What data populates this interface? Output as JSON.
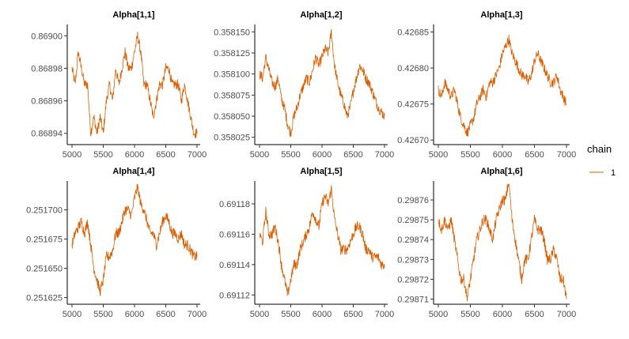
{
  "chart_data": [
    {
      "type": "line",
      "title": "Alpha[1,1]",
      "xlim": [
        5000,
        7000
      ],
      "ylim": [
        0.868935,
        0.869005
      ],
      "xticks": [
        5000,
        5500,
        6000,
        6500,
        7000
      ],
      "xtick_labels": [
        "5000",
        "5500",
        "6000",
        "6500",
        "7000"
      ],
      "yticks": [
        0.86894,
        0.86896,
        0.86898,
        0.869
      ],
      "ytick_labels": [
        "0.86894",
        "0.86896",
        "0.86898",
        "0.86900"
      ],
      "series": [
        {
          "x": [
            5000,
            5050,
            5100,
            5150,
            5200,
            5250,
            5300,
            5350,
            5400,
            5450,
            5500,
            5550,
            5600,
            5650,
            5700,
            5750,
            5800,
            5850,
            5900,
            5950,
            6000,
            6050,
            6100,
            6150,
            6200,
            6250,
            6300,
            6350,
            6400,
            6450,
            6500,
            6550,
            6600,
            6650,
            6700,
            6750,
            6800,
            6850,
            6900,
            6950,
            7000
          ],
          "values": [
            0.86898,
            0.86897,
            0.86899,
            0.86898,
            0.86897,
            0.86897,
            0.86894,
            0.86895,
            0.86894,
            0.86895,
            0.86894,
            0.86896,
            0.86897,
            0.86896,
            0.86898,
            0.86897,
            0.86898,
            0.86899,
            0.86898,
            0.86898,
            0.86899,
            0.869,
            0.86899,
            0.86897,
            0.86897,
            0.86896,
            0.86895,
            0.86896,
            0.86897,
            0.86897,
            0.86898,
            0.86898,
            0.86897,
            0.86897,
            0.86897,
            0.86896,
            0.86897,
            0.86896,
            0.86895,
            0.86894,
            0.86894
          ]
        }
      ]
    },
    {
      "type": "line",
      "title": "Alpha[1,2]",
      "xlim": [
        5000,
        7000
      ],
      "ylim": [
        0.35802,
        0.358155
      ],
      "xticks": [
        5000,
        5500,
        6000,
        6500,
        7000
      ],
      "xtick_labels": [
        "5000",
        "5500",
        "6000",
        "6500",
        "7000"
      ],
      "yticks": [
        0.358025,
        0.35805,
        0.358075,
        0.3581,
        0.358125,
        0.35815
      ],
      "ytick_labels": [
        "0.358025",
        "0.358050",
        "0.358075",
        "0.358100",
        "0.358125",
        "0.358150"
      ],
      "series": [
        {
          "x": [
            5000,
            5050,
            5100,
            5150,
            5200,
            5250,
            5300,
            5350,
            5400,
            5450,
            5500,
            5550,
            5600,
            5650,
            5700,
            5750,
            5800,
            5850,
            5900,
            5950,
            6000,
            6050,
            6100,
            6150,
            6200,
            6250,
            6300,
            6350,
            6400,
            6450,
            6500,
            6550,
            6600,
            6650,
            6700,
            6750,
            6800,
            6850,
            6900,
            6950,
            7000
          ],
          "values": [
            0.3581,
            0.358095,
            0.35812,
            0.358105,
            0.35809,
            0.358085,
            0.358095,
            0.35807,
            0.35806,
            0.35804,
            0.35803,
            0.35805,
            0.35806,
            0.358075,
            0.358085,
            0.358095,
            0.35809,
            0.358105,
            0.35812,
            0.35811,
            0.35812,
            0.35813,
            0.358125,
            0.35815,
            0.35811,
            0.35809,
            0.358075,
            0.358065,
            0.35805,
            0.35806,
            0.35808,
            0.358095,
            0.35811,
            0.358105,
            0.358095,
            0.35809,
            0.35808,
            0.35807,
            0.35806,
            0.358055,
            0.35805
          ]
        }
      ]
    },
    {
      "type": "line",
      "title": "Alpha[1,3]",
      "xlim": [
        5000,
        7000
      ],
      "ylim": [
        0.426698,
        0.426856
      ],
      "xticks": [
        5000,
        5500,
        6000,
        6500,
        7000
      ],
      "xtick_labels": [
        "5000",
        "5500",
        "6000",
        "6500",
        "7000"
      ],
      "yticks": [
        0.4267,
        0.42675,
        0.4268,
        0.42685
      ],
      "ytick_labels": [
        "0.42670",
        "0.42675",
        "0.42680",
        "0.42685"
      ],
      "series": [
        {
          "x": [
            5000,
            5050,
            5100,
            5150,
            5200,
            5250,
            5300,
            5350,
            5400,
            5450,
            5500,
            5550,
            5600,
            5650,
            5700,
            5750,
            5800,
            5850,
            5900,
            5950,
            6000,
            6050,
            6100,
            6150,
            6200,
            6250,
            6300,
            6350,
            6400,
            6450,
            6500,
            6550,
            6600,
            6650,
            6700,
            6750,
            6800,
            6850,
            6900,
            6950,
            7000
          ],
          "values": [
            0.42677,
            0.42676,
            0.42678,
            0.42677,
            0.42676,
            0.42677,
            0.42675,
            0.42673,
            0.42672,
            0.42671,
            0.42672,
            0.42673,
            0.42675,
            0.42676,
            0.42677,
            0.42676,
            0.42678,
            0.42678,
            0.42679,
            0.4268,
            0.42682,
            0.42683,
            0.42684,
            0.42682,
            0.42681,
            0.4268,
            0.42679,
            0.42679,
            0.42678,
            0.42679,
            0.42681,
            0.42682,
            0.42681,
            0.4268,
            0.42679,
            0.42678,
            0.42678,
            0.42679,
            0.42677,
            0.42676,
            0.42675
          ]
        }
      ]
    },
    {
      "type": "line",
      "title": "Alpha[1,4]",
      "xlim": [
        5000,
        7000
      ],
      "ylim": [
        0.251622,
        0.251722
      ],
      "xticks": [
        5000,
        5500,
        6000,
        6500,
        7000
      ],
      "xtick_labels": [
        "5000",
        "5500",
        "6000",
        "6500",
        "7000"
      ],
      "yticks": [
        0.251625,
        0.25165,
        0.251675,
        0.2517
      ],
      "ytick_labels": [
        "0.251625",
        "0.251650",
        "0.251675",
        "0.251700"
      ],
      "series": [
        {
          "x": [
            5000,
            5050,
            5100,
            5150,
            5200,
            5250,
            5300,
            5350,
            5400,
            5450,
            5500,
            5550,
            5600,
            5650,
            5700,
            5750,
            5800,
            5850,
            5900,
            5950,
            6000,
            6050,
            6100,
            6150,
            6200,
            6250,
            6300,
            6350,
            6400,
            6450,
            6500,
            6550,
            6600,
            6650,
            6700,
            6750,
            6800,
            6850,
            6900,
            6950,
            7000
          ],
          "values": [
            0.25167,
            0.25168,
            0.251685,
            0.25169,
            0.25168,
            0.25169,
            0.25167,
            0.25165,
            0.25164,
            0.25163,
            0.25164,
            0.25166,
            0.25166,
            0.251665,
            0.25168,
            0.25168,
            0.25169,
            0.2517,
            0.2517,
            0.251695,
            0.25171,
            0.25172,
            0.251705,
            0.2517,
            0.25169,
            0.25168,
            0.25168,
            0.25167,
            0.25168,
            0.25169,
            0.251695,
            0.25169,
            0.25168,
            0.25168,
            0.251675,
            0.25168,
            0.25167,
            0.25167,
            0.251665,
            0.25166,
            0.25166
          ]
        }
      ]
    },
    {
      "type": "line",
      "title": "Alpha[1,5]",
      "xlim": [
        5000,
        7000
      ],
      "ylim": [
        0.691116,
        0.691193
      ],
      "xticks": [
        5000,
        5500,
        6000,
        6500,
        7000
      ],
      "xtick_labels": [
        "5000",
        "5500",
        "6000",
        "6500",
        "7000"
      ],
      "yticks": [
        0.69112,
        0.69114,
        0.69116,
        0.69118
      ],
      "ytick_labels": [
        "0.69112",
        "0.69114",
        "0.69116",
        "0.69118"
      ],
      "series": [
        {
          "x": [
            5000,
            5050,
            5100,
            5150,
            5200,
            5250,
            5300,
            5350,
            5400,
            5450,
            5500,
            5550,
            5600,
            5650,
            5700,
            5750,
            5800,
            5850,
            5900,
            5950,
            6000,
            6050,
            6100,
            6150,
            6200,
            6250,
            6300,
            6350,
            6400,
            6450,
            6500,
            6550,
            6600,
            6650,
            6700,
            6750,
            6800,
            6850,
            6900,
            6950,
            7000
          ],
          "values": [
            0.69116,
            0.691155,
            0.691175,
            0.69116,
            0.69116,
            0.691165,
            0.691155,
            0.69114,
            0.69113,
            0.69112,
            0.69113,
            0.69114,
            0.69114,
            0.69115,
            0.691155,
            0.69116,
            0.691165,
            0.691175,
            0.69117,
            0.691165,
            0.69118,
            0.691185,
            0.69118,
            0.69119,
            0.69117,
            0.69116,
            0.69115,
            0.69115,
            0.69115,
            0.691155,
            0.69116,
            0.691165,
            0.691165,
            0.69116,
            0.69115,
            0.69115,
            0.691145,
            0.691145,
            0.691145,
            0.69114,
            0.69114
          ]
        }
      ]
    },
    {
      "type": "line",
      "title": "Alpha[1,6]",
      "xlim": [
        5000,
        7000
      ],
      "ylim": [
        0.298709,
        0.298768
      ],
      "xticks": [
        5000,
        5500,
        6000,
        6500,
        7000
      ],
      "xtick_labels": [
        "5000",
        "5500",
        "6000",
        "6500",
        "7000"
      ],
      "yticks": [
        0.29871,
        0.29872,
        0.29873,
        0.29874,
        0.29875,
        0.29876
      ],
      "ytick_labels": [
        "0.29871",
        "0.29872",
        "0.29873",
        "0.29874",
        "0.29875",
        "0.29876"
      ],
      "series": [
        {
          "x": [
            5000,
            5050,
            5100,
            5150,
            5200,
            5250,
            5300,
            5350,
            5400,
            5450,
            5500,
            5550,
            5600,
            5650,
            5700,
            5750,
            5800,
            5850,
            5900,
            5950,
            6000,
            6050,
            6100,
            6150,
            6200,
            6250,
            6300,
            6350,
            6400,
            6450,
            6500,
            6550,
            6600,
            6650,
            6700,
            6750,
            6800,
            6850,
            6900,
            6950,
            7000
          ],
          "values": [
            0.29875,
            0.298745,
            0.29875,
            0.298745,
            0.29875,
            0.29874,
            0.29873,
            0.29872,
            0.29872,
            0.29871,
            0.29872,
            0.29873,
            0.29874,
            0.298745,
            0.29875,
            0.29875,
            0.298745,
            0.29874,
            0.29875,
            0.298755,
            0.29876,
            0.29876,
            0.29877,
            0.29875,
            0.29874,
            0.29873,
            0.29872,
            0.29873,
            0.29873,
            0.29874,
            0.29875,
            0.298745,
            0.298745,
            0.29874,
            0.29873,
            0.29873,
            0.298735,
            0.29873,
            0.29872,
            0.29872,
            0.29871
          ]
        }
      ]
    }
  ],
  "legend": {
    "title": "chain",
    "label": "1"
  },
  "colors": {
    "series": "#d95f02",
    "axis": "#000000",
    "tick_text": "#4d4d4d"
  }
}
